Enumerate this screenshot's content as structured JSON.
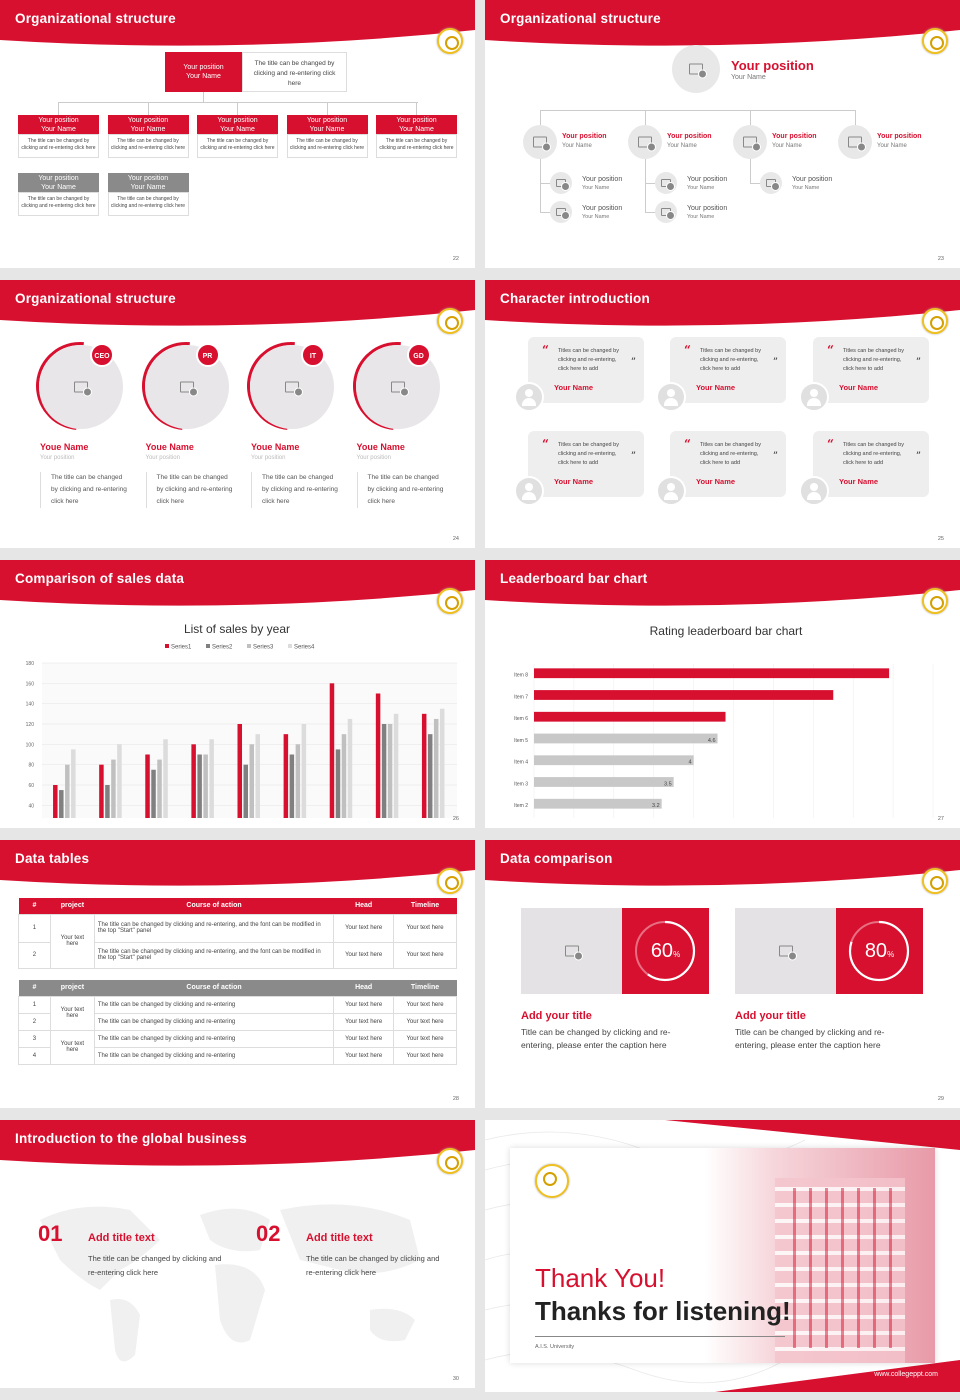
{
  "colors": {
    "accent": "#d7102f",
    "gray": "#8a8a8a",
    "light_gray": "#c8c8c8"
  },
  "slide1": {
    "title": "Organizational structure",
    "page": "22",
    "top": {
      "pos": "Your position",
      "name": "Your Name",
      "note": "The title can be changed by clicking and re-entering click here"
    },
    "row1_pos": "Your position",
    "row1_name": "Your Name",
    "row_note": "The title can be changed by clicking and re-entering click here"
  },
  "slide2": {
    "title": "Organizational structure",
    "page": "23",
    "top_pos": "Your position",
    "top_name": "Your Name",
    "pos": "Your position",
    "name": "Your Name"
  },
  "slide3": {
    "title": "Organizational structure",
    "page": "24",
    "people": [
      {
        "badge": "CEO",
        "name": "Youe Name",
        "pos": "Your position",
        "desc": "The title can be changed by clicking and re-entering click here"
      },
      {
        "badge": "PR",
        "name": "Youe Name",
        "pos": "Your position",
        "desc": "The title can be changed by clicking and re-entering click here"
      },
      {
        "badge": "IT",
        "name": "Youe Name",
        "pos": "Your position",
        "desc": "The title can be changed by clicking and re-entering click here"
      },
      {
        "badge": "GD",
        "name": "Youe Name",
        "pos": "Your position",
        "desc": "The title can be changed by clicking and re-entering click here"
      }
    ]
  },
  "slide4": {
    "title": "Character introduction",
    "page": "25",
    "quote_text": "Titles can be changed by clicking and re-entering, click here to add",
    "quote_name": "Your Name",
    "open_mark": "“",
    "close_mark": "”"
  },
  "slide5": {
    "title": "Comparison of sales data",
    "page": "26"
  },
  "slide6": {
    "title": "Leaderboard bar chart",
    "page": "27"
  },
  "chart_data": [
    {
      "type": "bar",
      "title": "List of sales by year",
      "categories": [
        "2010",
        "2012",
        "2014",
        "2016",
        "2018",
        "2020",
        "2022",
        "2024",
        "2026"
      ],
      "series": [
        {
          "name": "Series1",
          "values": [
            60,
            80,
            90,
            100,
            120,
            110,
            160,
            150,
            130
          ],
          "color": "#d7102f"
        },
        {
          "name": "Series2",
          "values": [
            55,
            60,
            75,
            90,
            80,
            90,
            95,
            120,
            110
          ],
          "color": "#808080"
        },
        {
          "name": "Series3",
          "values": [
            80,
            85,
            85,
            90,
            100,
            100,
            110,
            120,
            125
          ],
          "color": "#c0c0c0"
        },
        {
          "name": "Series4",
          "values": [
            95,
            100,
            105,
            105,
            110,
            120,
            125,
            130,
            135
          ],
          "color": "#dcdcdc"
        }
      ],
      "ylim": [
        0,
        180
      ],
      "yticks": [
        0,
        20,
        40,
        60,
        80,
        100,
        120,
        140,
        160,
        180
      ],
      "legend": "top",
      "grid": true
    },
    {
      "type": "bar",
      "orientation": "horizontal",
      "title": "Rating leaderboard bar chart",
      "categories": [
        "Item 8",
        "Item 7",
        "Item 6",
        "Item 5",
        "Item 4",
        "Item 3",
        "Item 2",
        "Item 1"
      ],
      "values": [
        8.9,
        7.5,
        4.8,
        4.6,
        4,
        3.5,
        3.2,
        2.5
      ],
      "labels": [
        "",
        "",
        "",
        "4.6",
        "4",
        "3.5",
        "3.2",
        "2.5"
      ],
      "colors": [
        "#d7102f",
        "#d7102f",
        "#d7102f",
        "#c8c8c8",
        "#c8c8c8",
        "#c8c8c8",
        "#c8c8c8",
        "#c8c8c8"
      ],
      "xlim": [
        0,
        10
      ],
      "xticks": [
        0,
        1,
        2,
        3,
        4,
        5,
        6,
        7,
        8,
        9,
        10
      ],
      "grid": true
    }
  ],
  "slide7": {
    "title": "Data tables",
    "page": "28",
    "headers": [
      "#",
      "project",
      "Course of action",
      "Head",
      "Timeline"
    ],
    "t1": {
      "rows": [
        {
          "n": "1",
          "action": "The title can be changed by clicking and re-entering, and the font can be modified in the top \"Start\" panel",
          "head": "Your text here",
          "time": "Your text here"
        },
        {
          "n": "2",
          "action": "The title can be changed by clicking and re-entering, and the font can be modified in the top \"Start\" panel",
          "head": "Your text here",
          "time": "Your text here"
        }
      ],
      "project": "Your text here"
    },
    "t2": {
      "rows": [
        {
          "n": "1",
          "action": "The title can be changed by clicking and re-entering",
          "head": "Your text here",
          "time": "Your text here"
        },
        {
          "n": "2",
          "action": "The title can be changed by clicking and re-entering",
          "head": "Your text here",
          "time": "Your text here"
        },
        {
          "n": "3",
          "action": "The title can be changed by clicking and re-entering",
          "head": "Your text here",
          "time": "Your text here"
        },
        {
          "n": "4",
          "action": "The title can be changed by clicking and re-entering",
          "head": "Your text here",
          "time": "Your text here"
        }
      ],
      "project_a": "Your text here",
      "project_b": "Your text here"
    }
  },
  "slide8": {
    "title": "Data comparison",
    "page": "29",
    "items": [
      {
        "value": 60,
        "value_text": "60",
        "unit": "%",
        "title": "Add your title",
        "desc": "Title can be changed by clicking and re-entering, please enter the caption here"
      },
      {
        "value": 80,
        "value_text": "80",
        "unit": "%",
        "title": "Add your title",
        "desc": "Title can be changed by clicking and re-entering, please enter the caption here"
      }
    ]
  },
  "slide9": {
    "title": "Introduction to the global business",
    "page": "30",
    "items": [
      {
        "num": "01",
        "title": "Add title text",
        "desc": "The title can be changed by clicking and re-entering click here"
      },
      {
        "num": "02",
        "title": "Add title text",
        "desc": "The title can be changed by clicking and re-entering click here"
      }
    ]
  },
  "slide10": {
    "thanks": "Thank You!",
    "listening": "Thanks for listening!",
    "university": "A.I.S. University",
    "website": "www.collegeppt.com"
  }
}
